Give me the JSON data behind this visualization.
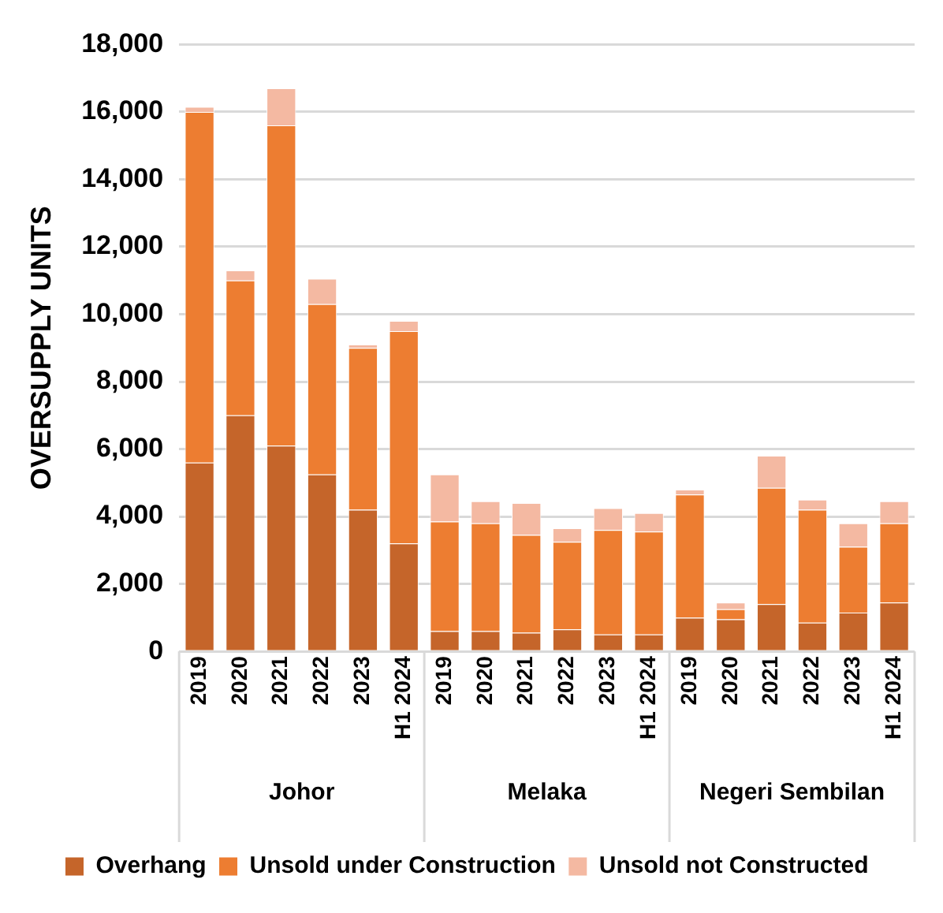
{
  "chart_data": {
    "type": "bar",
    "stacked": true,
    "ylabel": "OVERSUPPLY UNITS",
    "categories": [
      "2019",
      "2020",
      "2021",
      "2022",
      "2023",
      "H1 2024",
      "2019",
      "2020",
      "2021",
      "2022",
      "2023",
      "H1 2024",
      "2019",
      "2020",
      "2021",
      "2022",
      "2023",
      "H1 2024"
    ],
    "annotations": [
      "Johor",
      "Melaka",
      "Negeri Sembilan"
    ],
    "series": [
      {
        "name": "Overhang",
        "color": "#c5652a",
        "values": [
          5600,
          7000,
          6100,
          5250,
          4200,
          3200,
          600,
          600,
          550,
          650,
          500,
          500,
          1000,
          950,
          1400,
          850,
          1150,
          1450
        ]
      },
      {
        "name": "Unsold under Construction",
        "color": "#ed7d31",
        "values": [
          10400,
          4000,
          9500,
          5050,
          4800,
          6300,
          3250,
          3200,
          2900,
          2600,
          3100,
          3050,
          3650,
          300,
          3450,
          3350,
          1950,
          2350
        ]
      },
      {
        "name": "Unsold not Constructed",
        "color": "#f4b9a2",
        "values": [
          150,
          300,
          1100,
          750,
          100,
          300,
          1400,
          650,
          950,
          400,
          650,
          550,
          150,
          200,
          950,
          300,
          700,
          650
        ]
      }
    ],
    "ylim": [
      0,
      18000
    ],
    "yticks": [
      0,
      {
        "value": 2000,
        "label": "2,000"
      },
      {
        "value": 4000,
        "label": "4,000"
      },
      {
        "value": 6000,
        "label": "6,000"
      },
      {
        "value": 8000,
        "label": "8,000"
      },
      {
        "value": 10000,
        "label": "10,000"
      },
      {
        "value": 12000,
        "label": "12,000"
      },
      {
        "value": 14000,
        "label": "14,000"
      },
      {
        "value": 16000,
        "label": "16,000"
      },
      {
        "value": 18000,
        "label": "18,000"
      }
    ],
    "grid": "y",
    "legend": "bottom"
  }
}
